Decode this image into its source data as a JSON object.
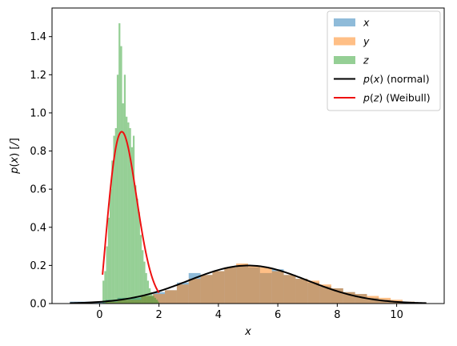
{
  "chart_data": {
    "type": "bar",
    "title": "",
    "xlabel": "x",
    "ylabel": "p(x) [/]",
    "xlim": [
      -1.6,
      11.6
    ],
    "ylim": [
      0,
      1.55
    ],
    "xticks": [
      0,
      2,
      4,
      6,
      8,
      10
    ],
    "yticks": [
      0.0,
      0.2,
      0.4,
      0.6,
      0.8,
      1.0,
      1.2,
      1.4
    ],
    "xtick_labels": [
      "0",
      "2",
      "4",
      "6",
      "8",
      "10"
    ],
    "ytick_labels": [
      "0.0",
      "0.2",
      "0.4",
      "0.6",
      "0.8",
      "1.0",
      "1.2",
      "1.4"
    ],
    "grid": false,
    "legend_position": "top-right",
    "legend": [
      {
        "key": "x",
        "math": "x",
        "suffix": "",
        "kind": "patch",
        "color": "#1f77b4",
        "opacity": 0.5
      },
      {
        "key": "y",
        "math": "y",
        "suffix": "",
        "kind": "patch",
        "color": "#ff7f0e",
        "opacity": 0.5
      },
      {
        "key": "z",
        "math": "z",
        "suffix": "",
        "kind": "patch",
        "color": "#2ca02c",
        "opacity": 0.5
      },
      {
        "key": "px",
        "math": "p(x)",
        "suffix": " (normal)",
        "kind": "line",
        "color": "#000000"
      },
      {
        "key": "pz",
        "math": "p(z)",
        "suffix": " (Weibull)",
        "kind": "line",
        "color": "#ee1111"
      }
    ],
    "histograms": [
      {
        "name": "x",
        "color": "#1f77b4",
        "opacity": 0.5,
        "bin_edges": [
          -1.0,
          -0.6,
          -0.2,
          0.2,
          0.6,
          1.0,
          1.4,
          1.8,
          2.2,
          2.6,
          3.0,
          3.4,
          3.8,
          4.2,
          4.6,
          5.0,
          5.4,
          5.8,
          6.2,
          6.6,
          7.0,
          7.4,
          7.8,
          8.2,
          8.6,
          9.0,
          9.4,
          9.8,
          10.2,
          10.6
        ],
        "density": [
          0.01,
          0.01,
          0.01,
          0.02,
          0.03,
          0.03,
          0.04,
          0.06,
          0.07,
          0.11,
          0.16,
          0.15,
          0.17,
          0.19,
          0.2,
          0.19,
          0.16,
          0.18,
          0.15,
          0.13,
          0.11,
          0.09,
          0.08,
          0.06,
          0.05,
          0.03,
          0.02,
          0.01,
          0.01
        ]
      },
      {
        "name": "y",
        "color": "#ff7f0e",
        "opacity": 0.5,
        "bin_edges": [
          0.2,
          0.6,
          1.0,
          1.4,
          1.8,
          2.2,
          2.6,
          3.0,
          3.4,
          3.8,
          4.2,
          4.6,
          5.0,
          5.4,
          5.8,
          6.2,
          6.6,
          7.0,
          7.4,
          7.8,
          8.2,
          8.6,
          9.0,
          9.4,
          9.8,
          10.2,
          10.6
        ],
        "density": [
          0.01,
          0.02,
          0.02,
          0.04,
          0.05,
          0.07,
          0.1,
          0.13,
          0.15,
          0.17,
          0.19,
          0.21,
          0.2,
          0.19,
          0.17,
          0.15,
          0.13,
          0.12,
          0.1,
          0.08,
          0.06,
          0.05,
          0.04,
          0.03,
          0.02,
          0.01
        ]
      },
      {
        "name": "z",
        "color": "#2ca02c",
        "opacity": 0.5,
        "bin_edges": [
          0.1,
          0.16,
          0.22,
          0.28,
          0.34,
          0.4,
          0.46,
          0.52,
          0.58,
          0.64,
          0.7,
          0.76,
          0.82,
          0.88,
          0.94,
          1.0,
          1.06,
          1.12,
          1.18,
          1.24,
          1.3,
          1.36,
          1.42,
          1.48,
          1.54,
          1.6,
          1.66,
          1.72,
          1.78,
          1.84,
          1.9,
          1.96,
          2.0
        ],
        "density": [
          0.12,
          0.17,
          0.3,
          0.45,
          0.6,
          0.75,
          0.88,
          0.92,
          1.2,
          1.47,
          1.35,
          1.05,
          1.2,
          0.98,
          0.95,
          0.92,
          0.82,
          0.88,
          0.62,
          0.55,
          0.48,
          0.36,
          0.28,
          0.22,
          0.16,
          0.12,
          0.08,
          0.06,
          0.04,
          0.03,
          0.02,
          0.01
        ]
      }
    ],
    "curves": [
      {
        "name": "p(x) (normal)",
        "color": "#000000",
        "kind": "normal",
        "mu": 5.0,
        "sigma": 2.0,
        "x_range": [
          -1.0,
          11.0
        ]
      },
      {
        "name": "p(z) (Weibull)",
        "color": "#ee1111",
        "kind": "weibull",
        "k": 2.15,
        "lambda": 1.0,
        "x_range": [
          0.1,
          2.0
        ]
      }
    ]
  }
}
